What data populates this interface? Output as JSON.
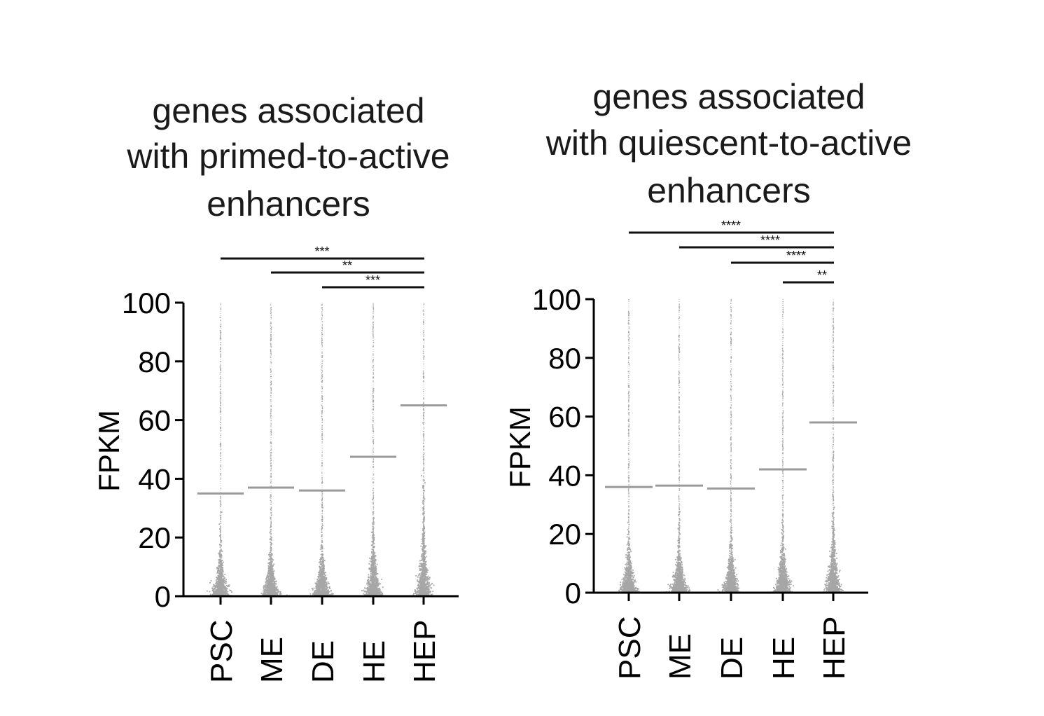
{
  "chart_data": [
    {
      "type": "scatter",
      "title_lines": [
        "genes associated",
        "with primed-to-active",
        "enhancers"
      ],
      "ylabel": "FPKM",
      "categories": [
        "PSC",
        "ME",
        "DE",
        "HE",
        "HEP"
      ],
      "ylim": [
        0,
        100
      ],
      "yticks": [
        "0",
        "20",
        "40",
        "60",
        "80",
        "100"
      ],
      "mean_values": [
        35,
        37,
        36,
        47.5,
        65
      ],
      "significance": [
        {
          "from": "PSC",
          "to": "HEP",
          "label": "***"
        },
        {
          "from": "ME",
          "to": "HEP",
          "label": "**"
        },
        {
          "from": "DE",
          "to": "HEP",
          "label": "***"
        }
      ],
      "point_color": "#a6a6a6",
      "mean_line_color": "#9a9a9a"
    },
    {
      "type": "scatter",
      "title_lines": [
        "genes associated",
        "with quiescent-to-active",
        "enhancers"
      ],
      "ylabel": "FPKM",
      "categories": [
        "PSC",
        "ME",
        "DE",
        "HE",
        "HEP"
      ],
      "ylim": [
        0,
        100
      ],
      "yticks": [
        "0",
        "20",
        "40",
        "60",
        "80",
        "100"
      ],
      "mean_values": [
        36,
        36.5,
        35.5,
        42,
        58
      ],
      "significance": [
        {
          "from": "PSC",
          "to": "HEP",
          "label": "****"
        },
        {
          "from": "ME",
          "to": "HEP",
          "label": "****"
        },
        {
          "from": "DE",
          "to": "HEP",
          "label": "****"
        },
        {
          "from": "HE",
          "to": "HEP",
          "label": "**"
        }
      ],
      "point_color": "#a6a6a6",
      "mean_line_color": "#9a9a9a"
    }
  ]
}
